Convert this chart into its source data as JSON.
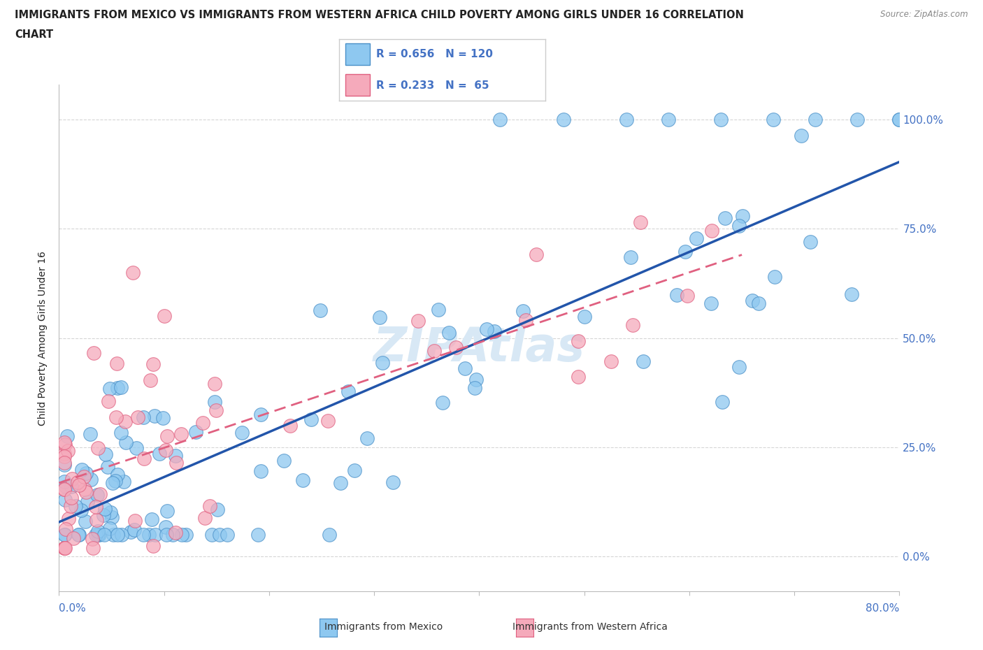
{
  "title_line1": "IMMIGRANTS FROM MEXICO VS IMMIGRANTS FROM WESTERN AFRICA CHILD POVERTY AMONG GIRLS UNDER 16 CORRELATION",
  "title_line2": "CHART",
  "source_text": "Source: ZipAtlas.com",
  "ylabel": "Child Poverty Among Girls Under 16",
  "yticks_labels": [
    "0.0%",
    "25.0%",
    "50.0%",
    "75.0%",
    "100.0%"
  ],
  "ytick_vals": [
    0,
    25,
    50,
    75,
    100
  ],
  "xlim": [
    0,
    80
  ],
  "ylim": [
    -8,
    108
  ],
  "mexico_color": "#8EC8F0",
  "mexico_edge": "#4A90C8",
  "western_africa_color": "#F5AABB",
  "western_africa_edge": "#E06080",
  "mexico_R": 0.656,
  "mexico_N": 120,
  "wa_R": 0.233,
  "wa_N": 65,
  "trendline_mexico_color": "#2255AA",
  "trendline_wa_color": "#E06080",
  "grid_color": "#CCCCCC",
  "background_color": "#FFFFFF",
  "title_color": "#222222",
  "source_color": "#888888",
  "ylabel_color": "#222222",
  "axis_label_color": "#4472C4",
  "watermark_color": "#D8E8F5",
  "legend_text_color": "#4472C4"
}
